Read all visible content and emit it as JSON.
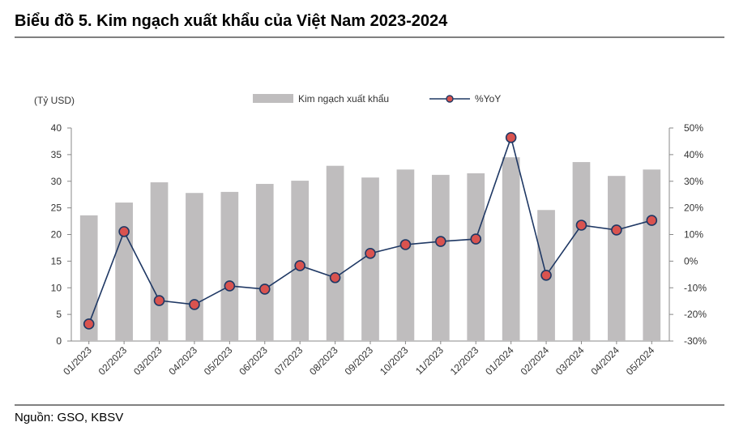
{
  "chart_data": {
    "type": "bar",
    "title": "Biểu đồ 5. Kim ngạch xuất khẩu của Việt Nam 2023-2024",
    "y_label": "(Tỷ USD)",
    "source": "Nguồn: GSO, KBSV",
    "categories": [
      "01/2023",
      "02/2023",
      "03/2023",
      "04/2023",
      "05/2023",
      "06/2023",
      "07/2023",
      "08/2023",
      "09/2023",
      "10/2023",
      "11/2023",
      "12/2023",
      "01/2024",
      "02/2024",
      "03/2024",
      "04/2024",
      "05/2024"
    ],
    "series": [
      {
        "name": "Kim ngạch xuất khẩu",
        "type": "bar",
        "color": "#bfbdbe",
        "values": [
          23.6,
          26.0,
          29.8,
          27.8,
          28.0,
          29.5,
          30.1,
          32.9,
          30.7,
          32.2,
          31.2,
          31.5,
          34.5,
          24.6,
          33.6,
          31.0,
          32.2
        ]
      },
      {
        "name": "%YoY",
        "type": "line",
        "axis": "y2",
        "color": "#1f3864",
        "marker_color": "#d9534f",
        "values": [
          -23.6,
          11.1,
          -14.8,
          -16.3,
          -9.3,
          -10.5,
          -1.7,
          -6.2,
          2.9,
          6.2,
          7.4,
          8.3,
          46.4,
          -5.3,
          13.5,
          11.7,
          15.3
        ]
      }
    ],
    "ylim": [
      0,
      40
    ],
    "yticks": [
      0,
      5,
      10,
      15,
      20,
      25,
      30,
      35,
      40
    ],
    "y2lim": [
      -30,
      50
    ],
    "y2ticks": [
      {
        "value": -30,
        "label": "-30%"
      },
      {
        "value": -20,
        "label": "-20%"
      },
      {
        "value": -10,
        "label": "-10%"
      },
      {
        "value": 0,
        "label": "0%"
      },
      {
        "value": 10,
        "label": "10%"
      },
      {
        "value": 20,
        "label": "20%"
      },
      {
        "value": 30,
        "label": "30%"
      },
      {
        "value": 40,
        "label": "40%"
      },
      {
        "value": 50,
        "label": "50%"
      }
    ],
    "legend": "top"
  }
}
